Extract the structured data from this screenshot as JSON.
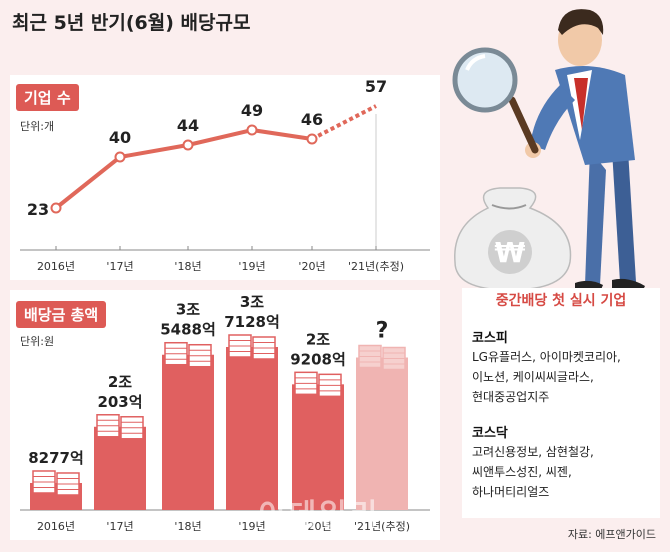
{
  "title": "최근 5년 반기(6월) 배당규모",
  "chart_data": [
    {
      "type": "line",
      "tag": "기업 수",
      "unit": "단위:개",
      "categories": [
        "2016년",
        "'17년",
        "'18년",
        "'19년",
        "'20년",
        "'21년(추정)"
      ],
      "values": [
        23,
        40,
        44,
        49,
        46,
        57
      ],
      "estimated_last": true,
      "color": "#e0685a"
    },
    {
      "type": "bar",
      "tag": "배당금 총액",
      "unit": "단위:원",
      "categories": [
        "2016년",
        "'17년",
        "'18년",
        "'19년",
        "'20년",
        "'21년(추정)"
      ],
      "values": [
        827700000000,
        2020300000000,
        3548800000000,
        3712800000000,
        2920800000000,
        null
      ],
      "labels": [
        [
          "8277억"
        ],
        [
          "2조",
          "203억"
        ],
        [
          "3조",
          "5488억"
        ],
        [
          "3조",
          "7128억"
        ],
        [
          "2조",
          "9208억"
        ],
        [
          "?"
        ]
      ],
      "color": "#e06060",
      "estimate_color": "#f0b4b2"
    }
  ],
  "companies": {
    "title": "중간배당 첫 실시 기업",
    "kospi_label": "코스피",
    "kospi_lines": [
      "LG유플러스, 아이마켓코리아,",
      "이노션, 케이씨씨글라스,",
      "현대중공업지주"
    ],
    "kosdaq_label": "코스닥",
    "kosdaq_lines": [
      "고려신용정보, 삼현철강,",
      "씨앤투스성진, 씨젠,",
      "하나머티리얼즈"
    ]
  },
  "source": "자료: 에프앤가이드",
  "watermark": "이데일리",
  "illustration": {
    "money_bag_symbol": "₩"
  }
}
